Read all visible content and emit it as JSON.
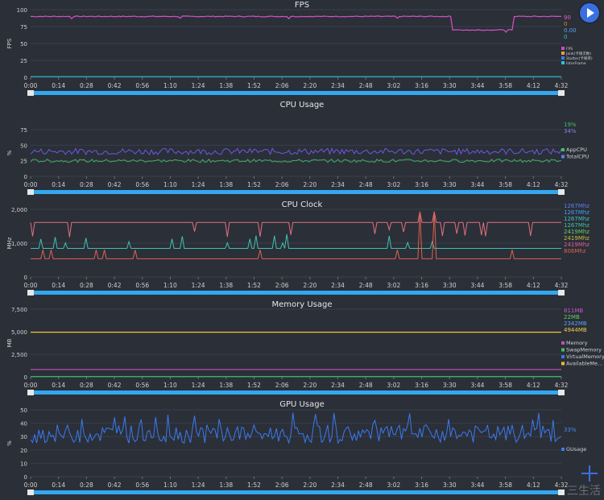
{
  "controls": {
    "play_icon": "play-icon",
    "add_icon": "plus-icon"
  },
  "watermark": "三生活",
  "time_ticks": [
    "0:00",
    "0:14",
    "0:28",
    "0:42",
    "0:56",
    "1:10",
    "1:24",
    "1:38",
    "1:52",
    "2:06",
    "2:20",
    "2:34",
    "2:48",
    "3:02",
    "3:16",
    "3:30",
    "3:44",
    "3:58",
    "4:12",
    "4:32"
  ],
  "scrollbar": {
    "handle_left": "≡",
    "handle_right": "≡"
  },
  "panels": [
    {
      "id": "fps",
      "title": "FPS",
      "ylabel": "FPS",
      "yticks": [
        "100",
        "75",
        "50",
        "25",
        "0"
      ],
      "values": [
        "90",
        "0",
        "0.00",
        "0"
      ],
      "value_colors": [
        "#e060c0",
        "#f08030",
        "#5aa0f0",
        "#30c0e0"
      ],
      "legend": [
        {
          "label": "FPS",
          "color": "#c050c0"
        },
        {
          "label": "Jank(卡顿次数)",
          "color": "#f0a030"
        },
        {
          "label": "Stutter(卡顿率)",
          "color": "#3080e0"
        },
        {
          "label": "InterFrame",
          "color": "#30c0e0"
        }
      ]
    },
    {
      "id": "cpu",
      "title": "CPU Usage",
      "ylabel": "%",
      "yticks": [
        "75",
        "50",
        "25",
        "0"
      ],
      "values": [
        "19%",
        "34%"
      ],
      "value_colors": [
        "#40c060",
        "#9080e0"
      ],
      "legend": [
        {
          "label": "AppCPU",
          "color": "#40c060"
        },
        {
          "label": "TotalCPU",
          "color": "#5a80e0"
        }
      ]
    },
    {
      "id": "clock",
      "title": "CPU Clock",
      "ylabel": "MHz",
      "yticks": [
        "2,000",
        "1,000",
        "0"
      ],
      "values": [
        "1267Mhz",
        "1267Mhz",
        "1267Mhz",
        "1267Mhz",
        "2419Mhz",
        "2419Mhz",
        "2419Mhz",
        "806Mhz"
      ],
      "value_colors": [
        "#5a80f0",
        "#40a0f0",
        "#40c0c0",
        "#40c0a0",
        "#60d060",
        "#c0c040",
        "#e06090",
        "#e06050"
      ],
      "legend": []
    },
    {
      "id": "memory",
      "title": "Memory Usage",
      "ylabel": "MB",
      "yticks": [
        "7,500",
        "5,000",
        "2,500",
        "0"
      ],
      "values": [
        "811MB",
        "22MB",
        "2342MB",
        "4944MB"
      ],
      "value_colors": [
        "#d050d0",
        "#60d060",
        "#5aa0f0",
        "#f0d040"
      ],
      "legend": [
        {
          "label": "Memory",
          "color": "#c050c0"
        },
        {
          "label": "SwapMemory",
          "color": "#40c060"
        },
        {
          "label": "VirtualMemory",
          "color": "#3080e0"
        },
        {
          "label": "AvailableMe...",
          "color": "#f0c030"
        }
      ]
    },
    {
      "id": "gpu",
      "title": "GPU Usage",
      "ylabel": "%",
      "yticks": [
        "50",
        "40",
        "30",
        "20",
        "10",
        "0"
      ],
      "values": [
        "33%"
      ],
      "value_colors": [
        "#4a8af0"
      ],
      "legend": [
        {
          "label": "GUsage",
          "color": "#3a7af0"
        }
      ]
    }
  ]
}
